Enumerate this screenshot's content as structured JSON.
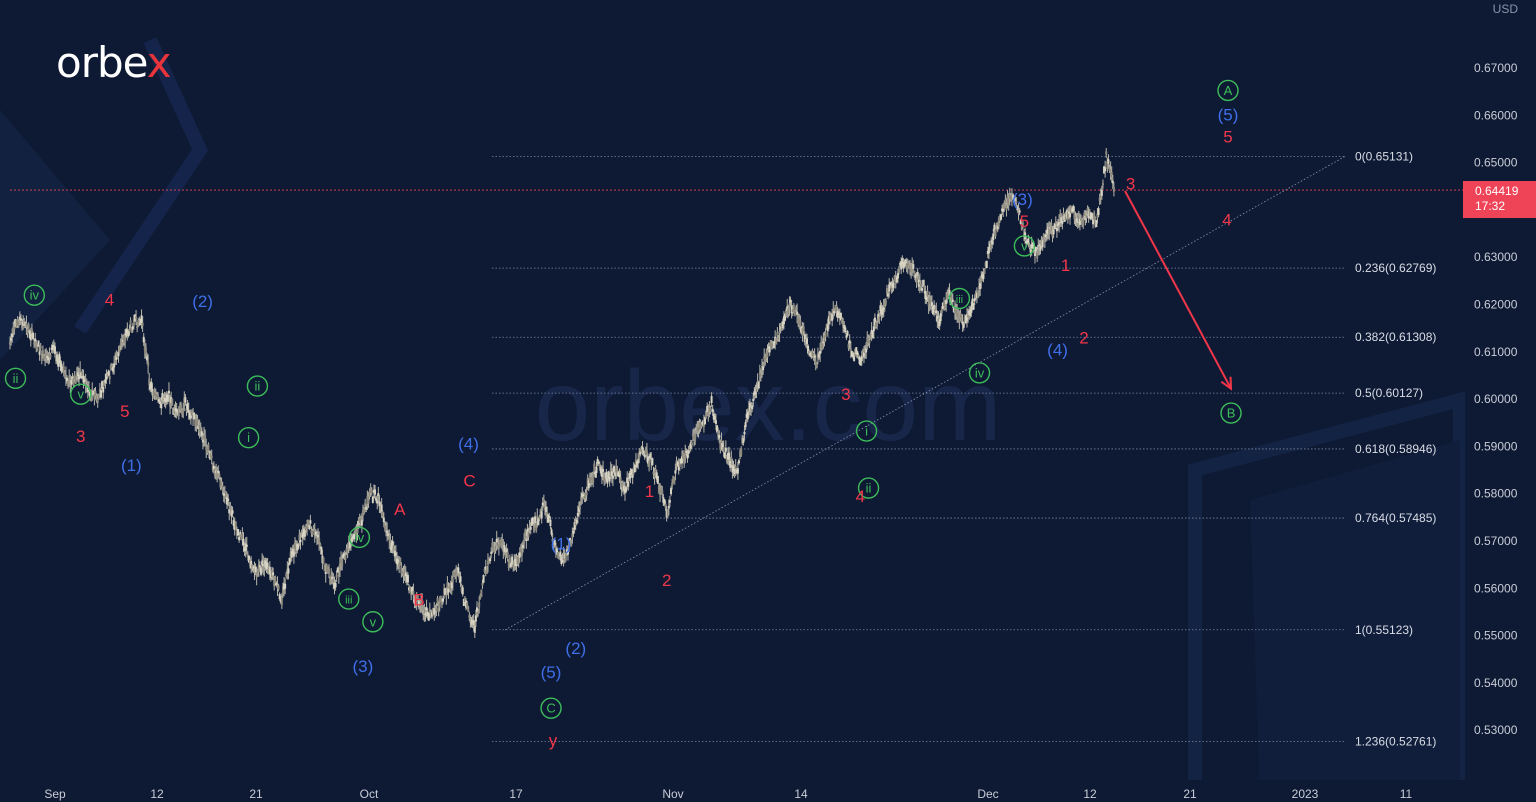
{
  "brand": {
    "logo_text_main": "orbe",
    "logo_text_x": "x"
  },
  "watermark": "orbex.com",
  "chart_data": {
    "type": "line",
    "currency": "USD",
    "y_ticks": [
      "0.67000",
      "0.66000",
      "0.65000",
      "0.64000",
      "0.63000",
      "0.62000",
      "0.61000",
      "0.60000",
      "0.59000",
      "0.58000",
      "0.57000",
      "0.56000",
      "0.55000",
      "0.54000",
      "0.53000"
    ],
    "ylim": [
      0.523,
      0.684
    ],
    "x_ticks": [
      "Sep",
      "12",
      "21",
      "Oct",
      "17",
      "Nov",
      "14",
      "Dec",
      "12",
      "21",
      "2023",
      "11"
    ],
    "current_price": "0.64419",
    "countdown": "17:32",
    "fib_levels": [
      {
        "label": "0(0.65131)",
        "value": 0.65131
      },
      {
        "label": "0.236(0.62769)",
        "value": 0.62769
      },
      {
        "label": "0.382(0.61308)",
        "value": 0.61308
      },
      {
        "label": "0.5(0.60127)",
        "value": 0.60127
      },
      {
        "label": "0.618(0.58946)",
        "value": 0.58946
      },
      {
        "label": "0.764(0.57485)",
        "value": 0.57485
      },
      {
        "label": "1(0.55123)",
        "value": 0.55123
      },
      {
        "label": "1.236(0.52761)",
        "value": 0.52761
      }
    ],
    "price_path": [
      [
        0.612
      ],
      [
        0.617
      ],
      [
        0.615
      ],
      [
        0.612
      ],
      [
        0.608
      ],
      [
        0.611
      ],
      [
        0.606
      ],
      [
        0.603
      ],
      [
        0.606
      ],
      [
        0.602
      ],
      [
        0.6
      ],
      [
        0.604
      ],
      [
        0.608
      ],
      [
        0.613
      ],
      [
        0.616
      ],
      [
        0.6165
      ],
      [
        0.603
      ],
      [
        0.599
      ],
      [
        0.601
      ],
      [
        0.5965
      ],
      [
        0.599
      ],
      [
        0.596
      ],
      [
        0.592
      ],
      [
        0.587
      ],
      [
        0.583
      ],
      [
        0.577
      ],
      [
        0.572
      ],
      [
        0.568
      ],
      [
        0.563
      ],
      [
        0.565
      ],
      [
        0.562
      ],
      [
        0.558
      ],
      [
        0.566
      ],
      [
        0.57
      ],
      [
        0.574
      ],
      [
        0.571
      ],
      [
        0.564
      ],
      [
        0.561
      ],
      [
        0.566
      ],
      [
        0.57
      ],
      [
        0.574
      ],
      [
        0.58
      ],
      [
        0.579
      ],
      [
        0.571
      ],
      [
        0.567
      ],
      [
        0.563
      ],
      [
        0.558
      ],
      [
        0.556
      ],
      [
        0.5545
      ],
      [
        0.557
      ],
      [
        0.56
      ],
      [
        0.564
      ],
      [
        0.556
      ],
      [
        0.552
      ],
      [
        0.562
      ],
      [
        0.568
      ],
      [
        0.57
      ],
      [
        0.565
      ],
      [
        0.566
      ],
      [
        0.572
      ],
      [
        0.574
      ],
      [
        0.578
      ],
      [
        0.57
      ],
      [
        0.566
      ],
      [
        0.57
      ],
      [
        0.578
      ],
      [
        0.582
      ],
      [
        0.586
      ],
      [
        0.583
      ],
      [
        0.585
      ],
      [
        0.581
      ],
      [
        0.584
      ],
      [
        0.59
      ],
      [
        0.587
      ],
      [
        0.582
      ],
      [
        0.576
      ],
      [
        0.586
      ],
      [
        0.588
      ],
      [
        0.592
      ],
      [
        0.595
      ],
      [
        0.599
      ],
      [
        0.591
      ],
      [
        0.587
      ],
      [
        0.585
      ],
      [
        0.596
      ],
      [
        0.601
      ],
      [
        0.608
      ],
      [
        0.612
      ],
      [
        0.615
      ],
      [
        0.62
      ],
      [
        0.617
      ],
      [
        0.611
      ],
      [
        0.608
      ],
      [
        0.614
      ],
      [
        0.619
      ],
      [
        0.616
      ],
      [
        0.61
      ],
      [
        0.6085
      ],
      [
        0.613
      ],
      [
        0.617
      ],
      [
        0.622
      ],
      [
        0.626
      ],
      [
        0.629
      ],
      [
        0.627
      ],
      [
        0.624
      ],
      [
        0.62
      ],
      [
        0.617
      ],
      [
        0.622
      ],
      [
        0.618
      ],
      [
        0.616
      ],
      [
        0.621
      ],
      [
        0.626
      ],
      [
        0.634
      ],
      [
        0.639
      ],
      [
        0.643
      ],
      [
        0.64
      ],
      [
        0.633
      ],
      [
        0.631
      ],
      [
        0.634
      ],
      [
        0.636
      ],
      [
        0.638
      ],
      [
        0.64
      ],
      [
        0.637
      ],
      [
        0.639
      ],
      [
        0.638
      ],
      [
        0.6513
      ],
      [
        0.6442
      ]
    ],
    "arrow": {
      "from": [
        1.0,
        0.644
      ],
      "to": [
        1.105,
        0.6005
      ]
    },
    "labels": [
      {
        "text": "iv",
        "color": "green",
        "circle": true,
        "t": 0.022,
        "v": 0.619,
        "dx": 0,
        "dy": -14
      },
      {
        "text": "ii",
        "color": "green",
        "circle": true,
        "t": 0.005,
        "v": 0.612,
        "dx": 0,
        "dy": 36
      },
      {
        "text": "v",
        "color": "green",
        "circle": true,
        "t": 0.064,
        "v": 0.604,
        "dx": 0,
        "dy": 14
      },
      {
        "text": "3",
        "color": "red",
        "circle": false,
        "t": 0.064,
        "v": 0.604,
        "dx": 0,
        "dy": 56
      },
      {
        "text": "4",
        "color": "red",
        "circle": false,
        "t": 0.09,
        "v": 0.613,
        "dx": 0,
        "dy": -38
      },
      {
        "text": "5",
        "color": "red",
        "circle": false,
        "t": 0.104,
        "v": 0.6,
        "dx": 0,
        "dy": 12
      },
      {
        "text": "(1)",
        "color": "blue",
        "circle": false,
        "t": 0.108,
        "v": 0.6,
        "dx": 2,
        "dy": 66
      },
      {
        "text": "(2)",
        "color": "blue",
        "circle": false,
        "t": 0.158,
        "v": 0.6165,
        "dx": 18,
        "dy": -20
      },
      {
        "text": "ii",
        "color": "green",
        "circle": true,
        "t": 0.204,
        "v": 0.6,
        "dx": 22,
        "dy": -13
      },
      {
        "text": "i",
        "color": "green",
        "circle": true,
        "t": 0.196,
        "v": 0.5965,
        "dx": 22,
        "dy": 22
      },
      {
        "text": "iv",
        "color": "green",
        "circle": true,
        "t": 0.28,
        "v": 0.568,
        "dx": 40,
        "dy": -13
      },
      {
        "text": "iii",
        "color": "green",
        "circle": true,
        "t": 0.274,
        "v": 0.563,
        "dx": 36,
        "dy": 25
      },
      {
        "text": "v",
        "color": "green",
        "circle": true,
        "t": 0.294,
        "v": 0.558,
        "dx": 38,
        "dy": 24
      },
      {
        "text": "(3)",
        "color": "blue",
        "circle": false,
        "t": 0.294,
        "v": 0.558,
        "dx": 28,
        "dy": 68
      },
      {
        "text": "A",
        "color": "red",
        "circle": false,
        "t": 0.322,
        "v": 0.574,
        "dx": 34,
        "dy": -13
      },
      {
        "text": "B",
        "color": "red",
        "circle": false,
        "t": 0.334,
        "v": 0.561,
        "dx": 40,
        "dy": 16
      },
      {
        "text": "C",
        "color": "red",
        "circle": false,
        "t": 0.376,
        "v": 0.58,
        "dx": 44,
        "dy": -13
      },
      {
        "text": "(4)",
        "color": "blue",
        "circle": false,
        "t": 0.376,
        "v": 0.58,
        "dx": 43,
        "dy": -50
      },
      {
        "text": "(1)",
        "color": "blue",
        "circle": false,
        "t": 0.448,
        "v": 0.56,
        "dx": 56,
        "dy": -45
      },
      {
        "text": "(2)",
        "color": "blue",
        "circle": false,
        "t": 0.465,
        "v": 0.552,
        "dx": 52,
        "dy": 22
      },
      {
        "text": "(5)",
        "color": "blue",
        "circle": false,
        "t": 0.448,
        "v": 0.552,
        "dx": 46,
        "dy": 46
      },
      {
        "text": "C",
        "color": "green",
        "circle": true,
        "t": 0.448,
        "v": 0.552,
        "dx": 46,
        "dy": 82
      },
      {
        "text": "y",
        "color": "red",
        "circle": false,
        "t": 0.448,
        "v": 0.552,
        "dx": 48,
        "dy": 114
      },
      {
        "text": "1",
        "color": "red",
        "circle": false,
        "t": 0.528,
        "v": 0.578,
        "dx": 56,
        "dy": -12
      },
      {
        "text": "2",
        "color": "red",
        "circle": false,
        "t": 0.54,
        "v": 0.566,
        "dx": 60,
        "dy": 20
      },
      {
        "text": "3",
        "color": "red",
        "circle": false,
        "t": 0.684,
        "v": 0.599,
        "dx": 80,
        "dy": -10
      },
      {
        "text": "i",
        "color": "green",
        "circle": true,
        "t": 0.71,
        "v": 0.596,
        "dx": 72,
        "dy": 13
      },
      {
        "text": "ii",
        "color": "green",
        "circle": true,
        "t": 0.71,
        "v": 0.585,
        "dx": 74,
        "dy": 18
      },
      {
        "text": "4",
        "color": "red",
        "circle": false,
        "t": 0.708,
        "v": 0.585,
        "dx": 68,
        "dy": 26
      },
      {
        "text": "iii",
        "color": "green",
        "circle": true,
        "t": 0.785,
        "v": 0.62,
        "dx": 82,
        "dy": -6
      },
      {
        "text": "iv",
        "color": "green",
        "circle": true,
        "t": 0.805,
        "v": 0.6085,
        "dx": 80,
        "dy": 14
      },
      {
        "text": "v",
        "color": "green",
        "circle": true,
        "t": 0.842,
        "v": 0.629,
        "dx": 84,
        "dy": -16
      },
      {
        "text": "5",
        "color": "red",
        "circle": false,
        "t": 0.842,
        "v": 0.629,
        "dx": 84,
        "dy": -41
      },
      {
        "text": "(3)",
        "color": "blue",
        "circle": false,
        "t": 0.842,
        "v": 0.629,
        "dx": 82,
        "dy": -63
      },
      {
        "text": "1",
        "color": "red",
        "circle": false,
        "t": 0.872,
        "v": 0.622,
        "dx": 92,
        "dy": -30
      },
      {
        "text": "2",
        "color": "red",
        "circle": false,
        "t": 0.885,
        "v": 0.616,
        "dx": 96,
        "dy": 14
      },
      {
        "text": "(4)",
        "color": "blue",
        "circle": false,
        "t": 0.872,
        "v": 0.616,
        "dx": 84,
        "dy": 26
      },
      {
        "text": "3",
        "color": "red",
        "circle": false,
        "t": 0.92,
        "v": 0.643,
        "dx": 104,
        "dy": -12
      },
      {
        "text": "4",
        "color": "red",
        "circle": false,
        "t": 1.0,
        "v": 0.638,
        "dx": 112,
        "dy": 0
      },
      {
        "text": "5",
        "color": "red",
        "circle": false,
        "t": 1.0,
        "v": 0.6513,
        "dx": 113,
        "dy": -20
      },
      {
        "text": "(5)",
        "color": "blue",
        "circle": false,
        "t": 1.0,
        "v": 0.6513,
        "dx": 113,
        "dy": -42
      },
      {
        "text": "A",
        "color": "green",
        "circle": true,
        "t": 1.0,
        "v": 0.6513,
        "dx": 113,
        "dy": -66
      },
      {
        "text": "B",
        "color": "green",
        "circle": true,
        "t": 1.105,
        "v": 0.6,
        "dx": 0,
        "dy": 14
      }
    ],
    "colors": {
      "green": "#3dbd5a",
      "red": "#f2364a",
      "blue": "#3f6fe8",
      "background": "#0e1a34",
      "candles": "#b9b6a8"
    }
  }
}
